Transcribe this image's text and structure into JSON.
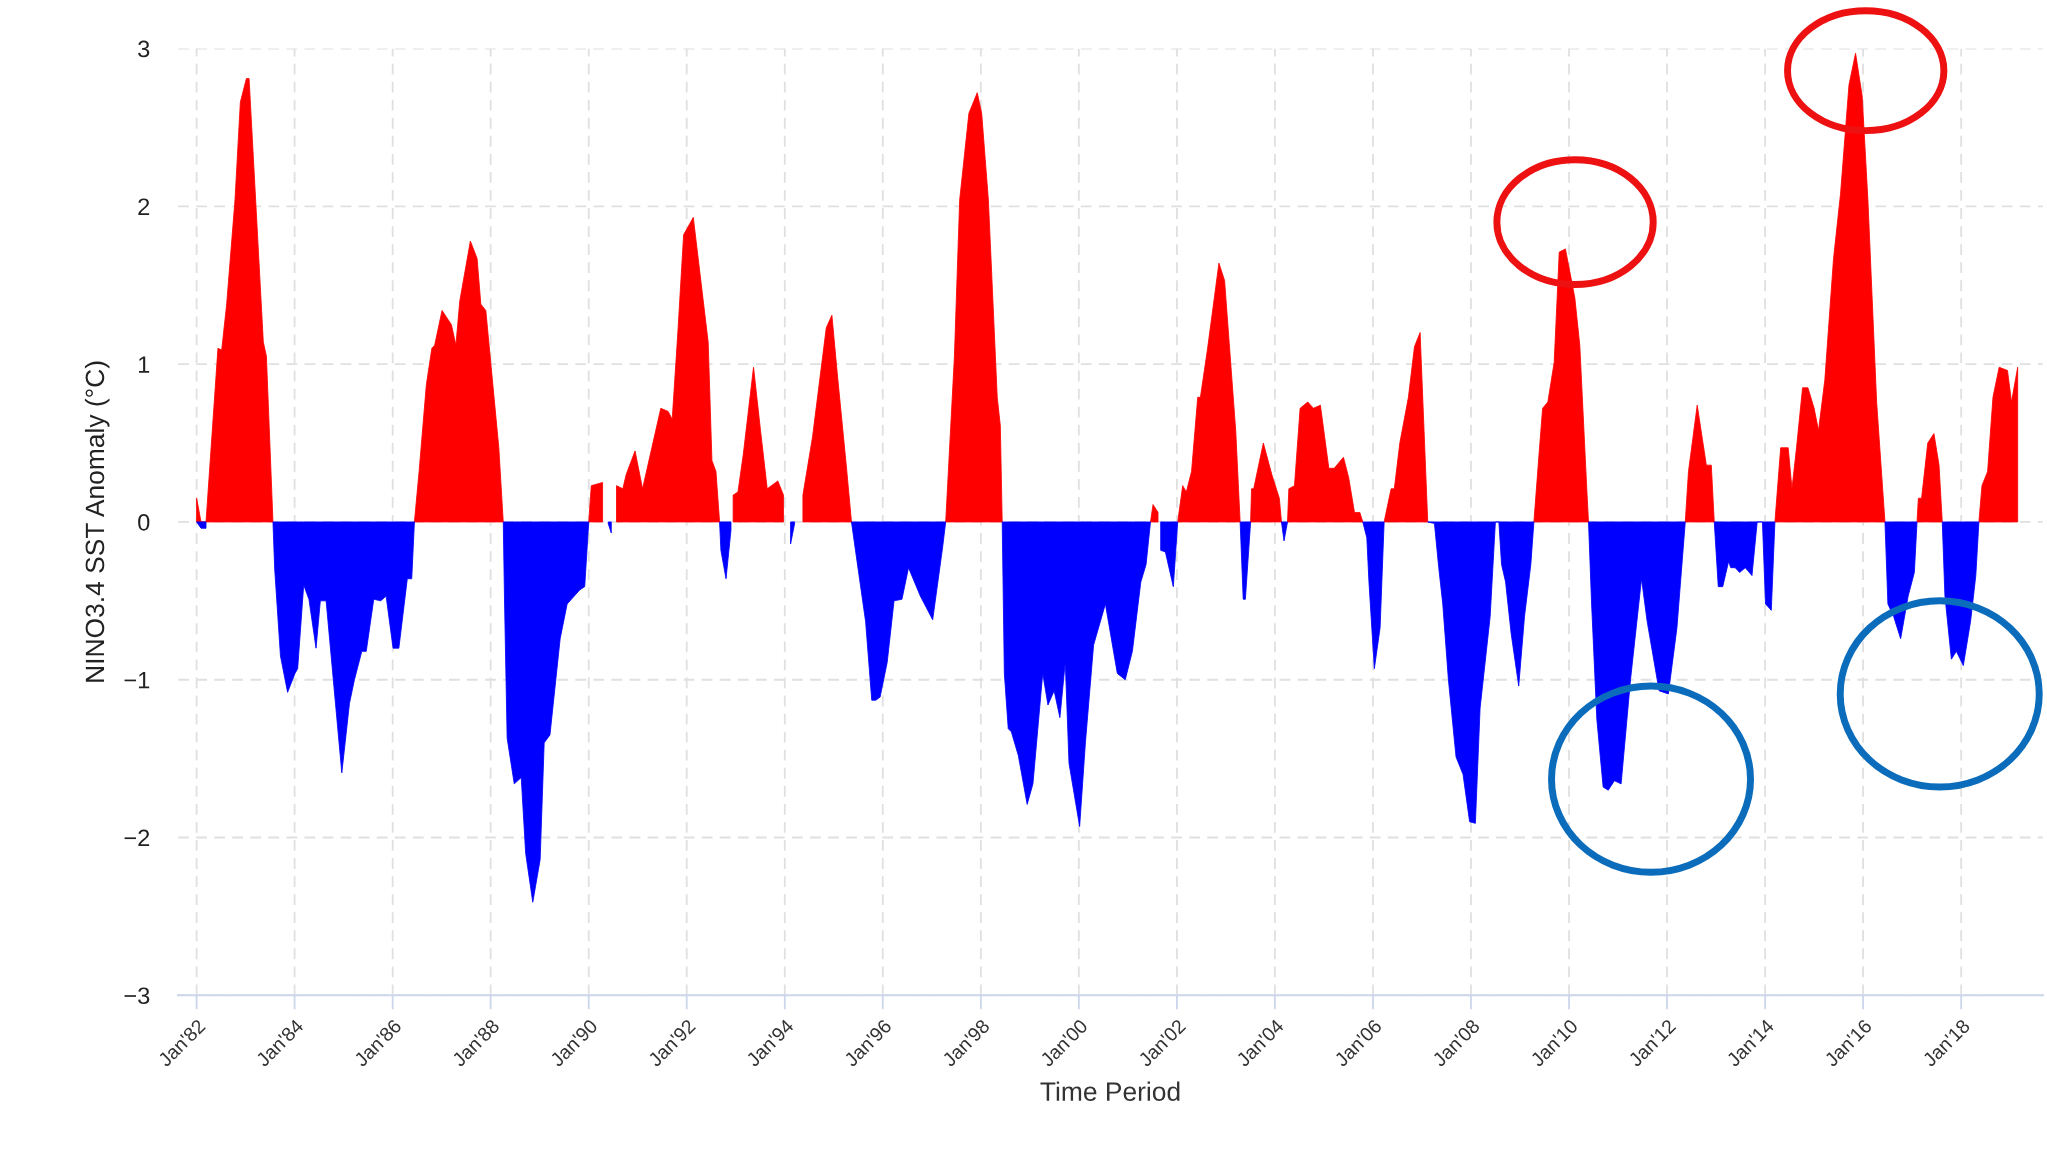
{
  "chart_data": {
    "type": "area",
    "xlabel": "Time Period",
    "ylabel": "NINO3.4 SST Anomaly (°C)",
    "xlim": [
      "1981-08-16",
      "2019-09-02"
    ],
    "ylim": [
      -3,
      3
    ],
    "xticks": [
      {
        "value": "1982-01",
        "label": "Jan'82"
      },
      {
        "value": "1984-01",
        "label": "Jan'84"
      },
      {
        "value": "1986-01",
        "label": "Jan'86"
      },
      {
        "value": "1988-01",
        "label": "Jan'88"
      },
      {
        "value": "1990-01",
        "label": "Jan'90"
      },
      {
        "value": "1992-01",
        "label": "Jan'92"
      },
      {
        "value": "1994-01",
        "label": "Jan'94"
      },
      {
        "value": "1996-01",
        "label": "Jan'96"
      },
      {
        "value": "1998-01",
        "label": "Jan'98"
      },
      {
        "value": "2000-01",
        "label": "Jan'00"
      },
      {
        "value": "2002-01",
        "label": "Jan'02"
      },
      {
        "value": "2004-01",
        "label": "Jan'04"
      },
      {
        "value": "2006-01",
        "label": "Jan'06"
      },
      {
        "value": "2008-01",
        "label": "Jan'08"
      },
      {
        "value": "2010-01",
        "label": "Jan'10"
      },
      {
        "value": "2012-01",
        "label": "Jan'12"
      },
      {
        "value": "2014-01",
        "label": "Jan'14"
      },
      {
        "value": "2016-01",
        "label": "Jan'16"
      },
      {
        "value": "2018-01",
        "label": "Jan'18"
      }
    ],
    "yticks": [
      {
        "value": -3,
        "label": "−3"
      },
      {
        "value": -2,
        "label": "−2"
      },
      {
        "value": -1,
        "label": "−1"
      },
      0,
      1,
      2,
      3
    ],
    "grid": true,
    "x": [
      "1982-01-01",
      "1982-02-03",
      "1982-03-12",
      "1982-06-09",
      "1982-07-07",
      "1982-08-13",
      "1982-10-14",
      "1982-11-23",
      "1983-01-07",
      "1983-01-27",
      "1983-05-13",
      "1983-06-05",
      "1983-07-24",
      "1983-08-06",
      "1983-09-18",
      "1983-11-10",
      "1984-01-04",
      "1984-01-24",
      "1984-03-09",
      "1984-04-17",
      "1984-06-09",
      "1984-07-11",
      "1984-08-23",
      "1984-12-18",
      "1985-02-13",
      "1985-03-22",
      "1985-05-16",
      "1985-06-18",
      "1985-08-13",
      "1985-10-04",
      "1985-11-13",
      "1986-01-04",
      "1986-02-16",
      "1986-04-20",
      "1986-05-23",
      "1986-06-12",
      "1986-07-17",
      "1986-09-09",
      "1986-10-20",
      "1986-11-10",
      "1987-01-04",
      "1987-03-15",
      "1987-04-17",
      "1987-05-16",
      "1987-08-03",
      "1987-09-22",
      "1987-10-20",
      "1987-11-26",
      "1988-03-02",
      "1988-04-04",
      "1988-04-14",
      "1988-05-03",
      "1988-06-25",
      "1988-08-16",
      "1988-09-18",
      "1988-11-10",
      "1989-01-04",
      "1989-02-03",
      "1989-03-18",
      "1989-06-02",
      "1989-07-24",
      "1989-10-27",
      "1989-12-02",
      "1990-01-01",
      "1990-01-20",
      "1990-04-14",
      "1990-05-26",
      "1990-06-18",
      "1990-07-27",
      "1990-09-12",
      "1990-10-07",
      "1990-12-12",
      "1991-02-06",
      "1991-06-22",
      "1991-08-16",
      "1991-09-15",
      "1991-10-27",
      "1991-12-09",
      "1992-02-19",
      "1992-06-09",
      "1992-07-07",
      "1992-08-06",
      "1992-09-02",
      "1992-09-12",
      "1992-10-20",
      "1992-11-26",
      "1992-12-12",
      "1993-01-17",
      "1993-02-26",
      "1993-05-13",
      "1993-07-04",
      "1993-08-23",
      "1993-11-10",
      "1993-12-22",
      "1994-02-13",
      "1994-03-15",
      "1994-05-16",
      "1994-06-18",
      "1994-07-27",
      "1994-11-06",
      "1994-12-18",
      "1995-01-27",
      "1995-04-04",
      "1995-05-13",
      "1995-06-05",
      "1995-08-26",
      "1995-10-11",
      "1995-11-10",
      "1995-12-12",
      "1996-02-03",
      "1996-03-25",
      "1996-05-23",
      "1996-07-11",
      "1996-10-07",
      "1997-01-07",
      "1997-03-22",
      "1997-04-14",
      "1997-06-18",
      "1997-07-27",
      "1997-10-04",
      "1997-12-05",
      "1998-01-07",
      "1998-02-26",
      "1998-05-03",
      "1998-05-26",
      "1998-06-09",
      "1998-06-25",
      "1998-07-24",
      "1998-08-16",
      "1998-10-07",
      "1998-12-12",
      "1999-01-24",
      "1999-04-07",
      "1999-05-16",
      "1999-07-01",
      "1999-08-13",
      "1999-09-22",
      "1999-10-20",
      "2000-01-07",
      "2000-02-19",
      "2000-04-20",
      "2000-07-17",
      "2000-10-14",
      "2000-12-12",
      "2001-02-03",
      "2001-04-07",
      "2001-05-16",
      "2001-06-18",
      "2001-07-07",
      "2001-08-13",
      "2001-09-02",
      "2001-10-07",
      "2001-12-05",
      "2002-01-07",
      "2002-02-13",
      "2002-03-12",
      "2002-04-20",
      "2002-06-05",
      "2002-06-25",
      "2002-08-16",
      "2002-11-10",
      "2002-12-22",
      "2003-03-15",
      "2003-04-17",
      "2003-05-10",
      "2003-05-26",
      "2003-07-04",
      "2003-07-11",
      "2003-07-27",
      "2003-10-07",
      "2003-12-09",
      "2004-02-03",
      "2004-02-19",
      "2004-03-09",
      "2004-04-04",
      "2004-04-14",
      "2004-05-26",
      "2004-07-07",
      "2004-09-02",
      "2004-10-14",
      "2004-12-05",
      "2005-02-06",
      "2005-03-18",
      "2005-05-26",
      "2005-07-04",
      "2005-08-16",
      "2005-09-25",
      "2005-10-17",
      "2005-11-16",
      "2005-12-02",
      "2006-01-11",
      "2006-02-23",
      "2006-03-25",
      "2006-05-16",
      "2006-06-09",
      "2006-07-20",
      "2006-09-22",
      "2006-11-06",
      "2006-12-18",
      "2007-02-13",
      "2007-04-04",
      "2007-05-06",
      "2007-06-05",
      "2007-07-17",
      "2007-09-12",
      "2007-11-03",
      "2007-12-22",
      "2008-02-03",
      "2008-03-09",
      "2008-05-23",
      "2008-07-01",
      "2008-07-27",
      "2008-08-16",
      "2008-09-15",
      "2008-10-27",
      "2008-12-22",
      "2009-02-03",
      "2009-03-22",
      "2009-04-14",
      "2009-05-26",
      "2009-06-18",
      "2009-07-27",
      "2009-09-12",
      "2009-10-20",
      "2009-12-05",
      "2010-02-13",
      "2010-03-22",
      "2010-05-13",
      "2010-05-26",
      "2010-06-18",
      "2010-07-27",
      "2010-09-12",
      "2010-10-20",
      "2010-12-05",
      "2011-01-24",
      "2011-04-04",
      "2011-06-25",
      "2011-08-06",
      "2011-11-03",
      "2012-01-11",
      "2012-03-15",
      "2012-05-16",
      "2012-06-09",
      "2012-08-13",
      "2012-10-20",
      "2012-11-26",
      "2012-12-18",
      "2013-01-17",
      "2013-02-19",
      "2013-04-04",
      "2013-04-20",
      "2013-05-23",
      "2013-06-25",
      "2013-08-06",
      "2013-09-25",
      "2013-11-03",
      "2013-11-23",
      "2013-12-12",
      "2014-01-04",
      "2014-02-16",
      "2014-03-15",
      "2014-04-27",
      "2014-06-22",
      "2014-07-20",
      "2014-08-23",
      "2014-10-07",
      "2014-11-16",
      "2015-01-01",
      "2015-02-03",
      "2015-03-22",
      "2015-05-26",
      "2015-07-17",
      "2015-09-18",
      "2015-11-06",
      "2015-12-25",
      "2016-02-06",
      "2016-04-11",
      "2016-06-12",
      "2016-07-04",
      "2016-08-16",
      "2016-10-07",
      "2016-12-02",
      "2017-01-17",
      "2017-02-06",
      "2017-02-16",
      "2017-03-12",
      "2017-04-27",
      "2017-06-12",
      "2017-07-20",
      "2017-08-13",
      "2017-09-02",
      "2017-10-20",
      "2017-11-26",
      "2018-01-17",
      "2018-03-12",
      "2018-04-20",
      "2018-05-13",
      "2018-06-05",
      "2018-07-17",
      "2018-08-26",
      "2018-10-11",
      "2018-12-12",
      "2019-01-11",
      "2019-02-26"
    ],
    "series": [
      {
        "color": "#ff0000",
        "values": [
          0.15,
          0,
          0,
          1.1,
          1.09,
          1.38,
          2.04,
          2.66,
          2.81,
          2.81,
          1.14,
          1.05,
          0,
          null,
          null,
          null,
          null,
          null,
          null,
          null,
          null,
          null,
          null,
          null,
          null,
          null,
          null,
          null,
          null,
          null,
          null,
          null,
          null,
          null,
          null,
          0,
          0.32,
          0.87,
          1.1,
          1.12,
          1.34,
          1.25,
          1.12,
          1.4,
          1.78,
          1.67,
          1.38,
          1.34,
          0.47,
          0,
          null,
          null,
          null,
          null,
          null,
          null,
          null,
          null,
          null,
          null,
          null,
          null,
          null,
          0,
          0.23,
          0.25,
          null,
          null,
          0.23,
          0.21,
          0.3,
          0.45,
          0.21,
          0.72,
          0.7,
          0.65,
          1.2,
          1.82,
          1.93,
          1.14,
          0.39,
          0.32,
          0,
          null,
          null,
          null,
          0.17,
          0.19,
          0.43,
          0.98,
          0.58,
          0.21,
          0.26,
          0.17,
          null,
          null,
          0.17,
          0.34,
          0.54,
          1.23,
          1.31,
          0.94,
          0.36,
          0,
          null,
          null,
          null,
          null,
          null,
          null,
          null,
          null,
          null,
          null,
          null,
          null,
          0,
          1.05,
          2.04,
          2.59,
          2.72,
          2.59,
          2.04,
          0.79,
          0.61,
          0,
          null,
          null,
          null,
          null,
          null,
          null,
          null,
          null,
          null,
          null,
          null,
          null,
          null,
          null,
          null,
          null,
          null,
          null,
          null,
          null,
          null,
          0,
          0.11,
          0.06,
          null,
          null,
          null,
          0,
          0.23,
          0.19,
          0.32,
          0.79,
          0.79,
          1.09,
          1.64,
          1.53,
          0.58,
          0,
          null,
          null,
          0,
          0.21,
          0.21,
          0.5,
          0.3,
          0.15,
          0,
          null,
          0,
          0.21,
          0.23,
          0.72,
          0.76,
          0.72,
          0.74,
          0.34,
          0.34,
          0.41,
          0.28,
          0.06,
          0.06,
          0,
          null,
          null,
          null,
          null,
          0,
          0.21,
          0.21,
          0.5,
          0.79,
          1.11,
          1.2,
          0,
          null,
          null,
          null,
          null,
          null,
          null,
          null,
          null,
          null,
          null,
          null,
          null,
          null,
          null,
          null,
          null,
          null,
          null,
          0,
          0.47,
          0.72,
          0.76,
          1.01,
          1.71,
          1.73,
          1.42,
          1.12,
          0.21,
          0,
          null,
          null,
          null,
          null,
          null,
          null,
          null,
          null,
          null,
          null,
          null,
          null,
          0,
          0.32,
          0.74,
          0.36,
          0.36,
          0,
          null,
          null,
          null,
          null,
          null,
          null,
          null,
          null,
          null,
          null,
          null,
          null,
          null,
          0,
          0.47,
          0.47,
          0.21,
          0.47,
          0.85,
          0.85,
          0.72,
          0.58,
          0.9,
          1.67,
          2.08,
          2.77,
          2.97,
          2.7,
          2.04,
          0.76,
          0,
          null,
          null,
          null,
          null,
          null,
          0,
          0.15,
          0.15,
          0.5,
          0.56,
          0.36,
          0,
          null,
          null,
          null,
          null,
          null,
          null,
          0,
          0.23,
          0.32,
          0.79,
          0.98,
          0.96,
          0.76,
          0.98
        ]
      },
      {
        "color": "#0000ff",
        "values": [
          0,
          -0.04,
          -0.04,
          null,
          null,
          null,
          null,
          null,
          null,
          null,
          null,
          null,
          0,
          -0.3,
          -0.85,
          -1.08,
          -0.96,
          -0.93,
          -0.4,
          -0.49,
          -0.8,
          -0.5,
          -0.5,
          -1.59,
          -1.15,
          -1.0,
          -0.82,
          -0.82,
          -0.49,
          -0.5,
          -0.47,
          -0.8,
          -0.8,
          -0.36,
          -0.36,
          0,
          null,
          null,
          null,
          null,
          null,
          null,
          null,
          null,
          null,
          null,
          null,
          null,
          null,
          0,
          -0.52,
          -1.37,
          -1.66,
          -1.62,
          -2.1,
          -2.41,
          -2.14,
          -1.4,
          -1.35,
          -0.74,
          -0.52,
          -0.43,
          -0.41,
          0,
          null,
          null,
          -0.01,
          -0.07,
          null,
          null,
          null,
          null,
          null,
          null,
          null,
          null,
          null,
          null,
          null,
          null,
          null,
          null,
          0,
          -0.18,
          -0.36,
          -0.05,
          null,
          null,
          null,
          null,
          null,
          null,
          null,
          null,
          -0.14,
          -0.01,
          null,
          null,
          null,
          null,
          null,
          null,
          null,
          0,
          -0.14,
          -0.63,
          -1.13,
          -1.13,
          -1.11,
          -0.89,
          -0.5,
          -0.49,
          -0.29,
          -0.47,
          -0.62,
          -0.16,
          0,
          null,
          null,
          null,
          null,
          null,
          null,
          null,
          null,
          0,
          -0.96,
          -1.31,
          -1.33,
          -1.48,
          -1.79,
          -1.66,
          -0.96,
          -1.16,
          -1.07,
          -1.24,
          -0.89,
          -1.53,
          -1.93,
          -1.4,
          -0.78,
          -0.52,
          -0.96,
          -1.0,
          -0.82,
          -0.38,
          -0.27,
          0,
          null,
          null,
          -0.18,
          -0.19,
          -0.41,
          0,
          null,
          null,
          null,
          null,
          null,
          null,
          null,
          null,
          null,
          0,
          -0.49,
          -0.49,
          0,
          null,
          null,
          null,
          null,
          null,
          0,
          -0.12,
          0,
          null,
          null,
          null,
          null,
          null,
          null,
          null,
          null,
          null,
          null,
          null,
          null,
          0,
          -0.1,
          -0.38,
          -0.93,
          -0.67,
          0,
          null,
          null,
          null,
          null,
          null,
          null,
          0,
          -0.01,
          -0.29,
          -0.52,
          -1.0,
          -1.49,
          -1.6,
          -1.9,
          -1.91,
          -1.18,
          -0.6,
          0,
          0,
          -0.27,
          -0.38,
          -0.71,
          -1.04,
          -0.6,
          -0.27,
          0,
          null,
          null,
          null,
          null,
          null,
          null,
          null,
          null,
          null,
          0,
          -0.52,
          -1.25,
          -1.68,
          -1.7,
          -1.64,
          -1.66,
          -1.0,
          -0.36,
          -0.63,
          -1.07,
          -1.09,
          -0.67,
          0,
          null,
          null,
          null,
          null,
          0,
          -0.41,
          -0.41,
          -0.25,
          -0.29,
          -0.29,
          -0.32,
          -0.29,
          -0.34,
          0,
          0,
          0,
          -0.52,
          -0.56,
          0,
          null,
          null,
          null,
          null,
          null,
          null,
          null,
          null,
          null,
          null,
          null,
          null,
          null,
          null,
          null,
          null,
          0,
          -0.52,
          -0.6,
          -0.74,
          -0.47,
          -0.32,
          0,
          null,
          null,
          null,
          null,
          null,
          0,
          -0.47,
          -0.87,
          -0.82,
          -0.91,
          -0.63,
          -0.34,
          0,
          null,
          null,
          null,
          null,
          null,
          null,
          null
        ]
      }
    ]
  }
}
